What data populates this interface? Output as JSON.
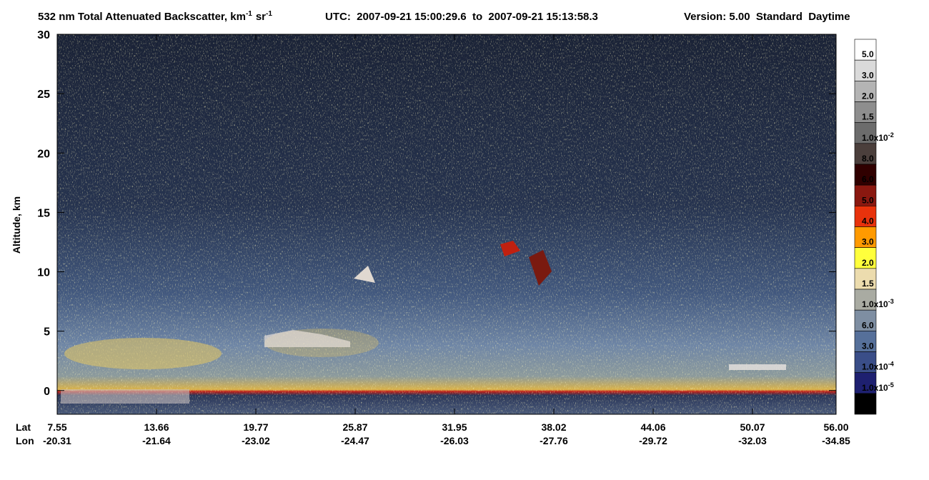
{
  "chart_data": {
    "type": "curtain",
    "title": {
      "main": "532 nm Total Attenuated Backscatter, km",
      "sup1": "-1",
      "unit2": "sr",
      "sup2": "-1",
      "utc": "UTC:  2007-09-21 15:00:29.6  to  2007-09-21 15:13:58.3",
      "version": "Version: 5.00  Standard  Daytime"
    },
    "y_label": "Altitude, km",
    "ylim": [
      -2,
      30
    ],
    "yticks": [
      0,
      5,
      10,
      15,
      20,
      25,
      30
    ],
    "x_row_labels": [
      "Lat",
      "Lon"
    ],
    "x_ticks": [
      {
        "lat": "7.55",
        "lon": "-20.31"
      },
      {
        "lat": "13.66",
        "lon": "-21.64"
      },
      {
        "lat": "19.77",
        "lon": "-23.02"
      },
      {
        "lat": "25.87",
        "lon": "-24.47"
      },
      {
        "lat": "31.95",
        "lon": "-26.03"
      },
      {
        "lat": "38.02",
        "lon": "-27.76"
      },
      {
        "lat": "44.06",
        "lon": "-29.72"
      },
      {
        "lat": "50.07",
        "lon": "-32.03"
      },
      {
        "lat": "56.00",
        "lon": "-34.85"
      }
    ],
    "colorbar": {
      "colors": [
        "#ffffff",
        "#dadada",
        "#b4b4b4",
        "#8e8e8e",
        "#6c6c6c",
        "#4b3f3c",
        "#300000",
        "#8a1810",
        "#e8320c",
        "#ff9a00",
        "#ffff3c",
        "#ecdcae",
        "#a9aba2",
        "#7e8ea2",
        "#56709a",
        "#3a4e88",
        "#1e2070",
        "#000000"
      ],
      "labels": [
        {
          "text": "5.0"
        },
        {
          "text": "3.0"
        },
        {
          "text": "2.0"
        },
        {
          "text": "1.5"
        },
        {
          "text": "1.0x10",
          "sup": "-2"
        },
        {
          "text": "8.0"
        },
        {
          "text": "6.0"
        },
        {
          "text": "5.0"
        },
        {
          "text": "4.0"
        },
        {
          "text": "3.0"
        },
        {
          "text": "2.0"
        },
        {
          "text": "1.5"
        },
        {
          "text": "1.0x10",
          "sup": "-3"
        },
        {
          "text": "6.0"
        },
        {
          "text": "3.0"
        },
        {
          "text": "1.0x10",
          "sup": "-4"
        },
        {
          "text": "1.0x10",
          "sup": "-5"
        }
      ]
    }
  }
}
